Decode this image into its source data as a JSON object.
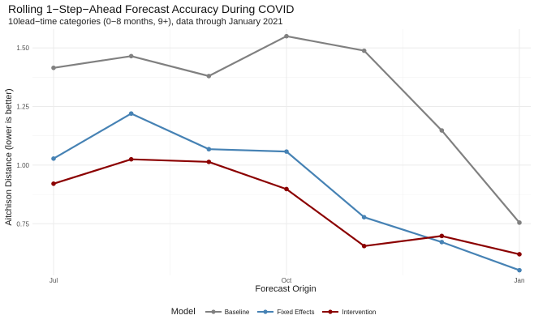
{
  "chart_data": {
    "type": "line",
    "title": "Rolling 1−Step−Ahead Forecast Accuracy During COVID",
    "subtitle": "10lead−time categories (0−8 months, 9+), data through January 2021",
    "xlabel": "Forecast Origin",
    "ylabel": "Aitchison Distance (lower is better)",
    "x": [
      "2020-07",
      "2020-08",
      "2020-09",
      "2020-10",
      "2020-11",
      "2020-12",
      "2021-01"
    ],
    "x_ticks": [
      {
        "label": "Jul",
        "index": 0
      },
      {
        "label": "Oct",
        "index": 3
      },
      {
        "label": "Jan",
        "index": 6
      }
    ],
    "y_ticks": [
      {
        "label": "0.75",
        "value": 0.75
      },
      {
        "label": "1.00",
        "value": 1.0
      },
      {
        "label": "1.25",
        "value": 1.25
      },
      {
        "label": "1.50",
        "value": 1.5
      }
    ],
    "ylim": [
      0.53,
      1.58
    ],
    "grid": true,
    "legend_position": "bottom",
    "legend_title": "Model",
    "series": [
      {
        "name": "Baseline",
        "color": "#808080",
        "values": [
          1.415,
          1.465,
          1.38,
          1.55,
          1.488,
          1.148,
          0.755
        ]
      },
      {
        "name": "Fixed Effects",
        "color": "#4682b4",
        "values": [
          1.028,
          1.22,
          1.068,
          1.058,
          0.778,
          0.672,
          0.552
        ]
      },
      {
        "name": "Intervention",
        "color": "#8b0000",
        "values": [
          0.921,
          1.025,
          1.014,
          0.898,
          0.655,
          0.698,
          0.62
        ]
      }
    ]
  }
}
